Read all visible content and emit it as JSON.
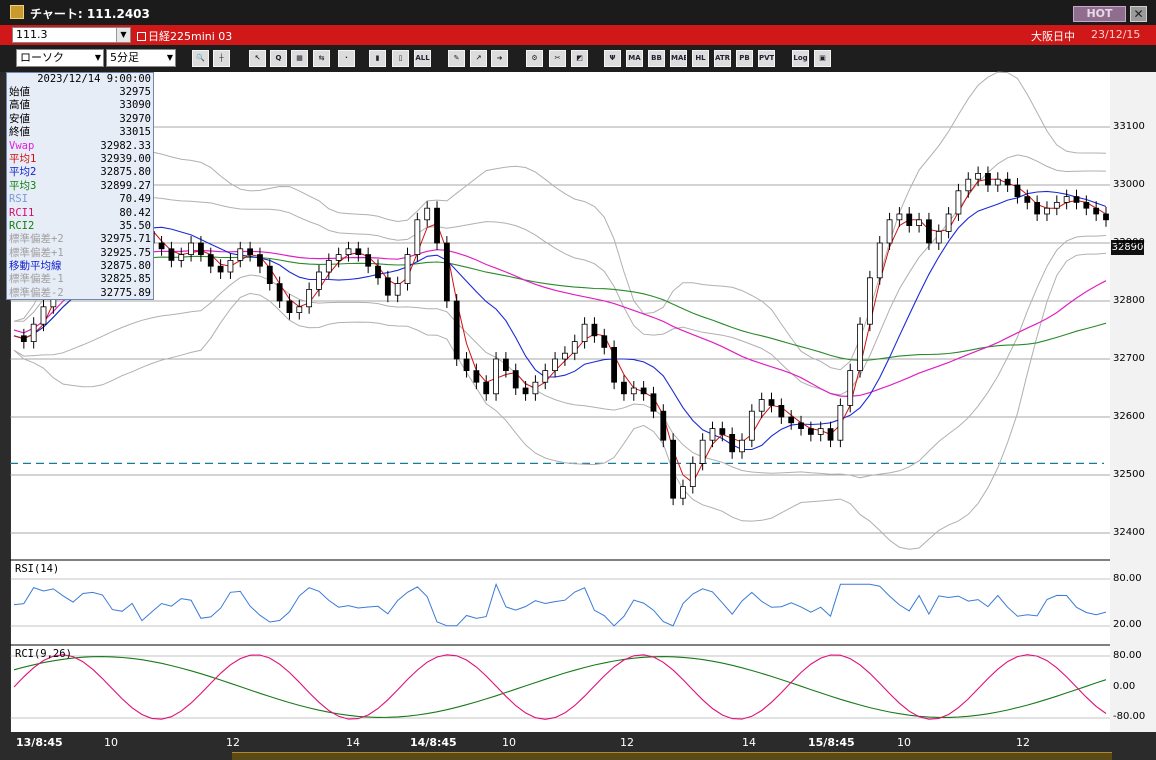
{
  "window": {
    "title": "チャート: 111.2403",
    "hot_label": "HOT",
    "close_label": "✕"
  },
  "header": {
    "code": "111.3",
    "instrument": "日経225mini 03",
    "market": "大阪日中",
    "date": "23/12/15"
  },
  "toolbar": {
    "chart_type": "ローソク",
    "interval": "5分足",
    "buttons": [
      {
        "name": "zoom-icon",
        "text": "🔍"
      },
      {
        "name": "crosshair-icon",
        "text": "┼"
      },
      {
        "name": "cursor-icon",
        "text": "↖"
      },
      {
        "name": "magnify-icon",
        "text": "Q"
      },
      {
        "name": "grid-icon",
        "text": "▦"
      },
      {
        "name": "compare-icon",
        "text": "⇆"
      },
      {
        "name": "disabled-icon",
        "text": "·"
      },
      {
        "name": "candle-a-icon",
        "text": "▮"
      },
      {
        "name": "candle-b-icon",
        "text": "▯"
      },
      {
        "name": "all-icon",
        "text": "ALL"
      },
      {
        "name": "pencil-icon",
        "text": "✎"
      },
      {
        "name": "pointer-icon",
        "text": "↗"
      },
      {
        "name": "arrow-icon",
        "text": "➜"
      },
      {
        "name": "gear-icon",
        "text": "⚙"
      },
      {
        "name": "tool-icon",
        "text": "✂"
      },
      {
        "name": "color-icon",
        "text": "◩"
      },
      {
        "name": "indicator-icon",
        "text": "Ψ"
      },
      {
        "name": "ma-icon",
        "text": "MA"
      },
      {
        "name": "bb-icon",
        "text": "BB"
      },
      {
        "name": "mae-icon",
        "text": "MAE"
      },
      {
        "name": "hl-icon",
        "text": "HL"
      },
      {
        "name": "atr-icon",
        "text": "ATR"
      },
      {
        "name": "pb-icon",
        "text": "PB"
      },
      {
        "name": "pvt-icon",
        "text": "PVT"
      },
      {
        "name": "log-icon",
        "text": "Log"
      },
      {
        "name": "save-icon",
        "text": "▣"
      }
    ]
  },
  "info": {
    "datetime": "2023/12/14 9:00:00",
    "rows": [
      {
        "label": "始値",
        "value": "32975",
        "color": "#000000"
      },
      {
        "label": "高値",
        "value": "33090",
        "color": "#000000"
      },
      {
        "label": "安値",
        "value": "32970",
        "color": "#000000"
      },
      {
        "label": "終値",
        "value": "33015",
        "color": "#000000"
      },
      {
        "label": "Vwap",
        "value": "32982.33",
        "color": "#e020e0"
      },
      {
        "label": "平均1",
        "value": "32939.00",
        "color": "#d01010"
      },
      {
        "label": "平均2",
        "value": "32875.80",
        "color": "#1020d0"
      },
      {
        "label": "平均3",
        "value": "32899.27",
        "color": "#108010"
      },
      {
        "label": "RSI",
        "value": "70.49",
        "color": "#7a9ad8"
      },
      {
        "label": "RCI1",
        "value": "80.42",
        "color": "#d01070"
      },
      {
        "label": "RCI2",
        "value": "35.50",
        "color": "#108010"
      },
      {
        "label": "標準偏差+2",
        "value": "32975.71",
        "color": "#a0a0a0"
      },
      {
        "label": "標準偏差+1",
        "value": "32925.75",
        "color": "#a0a0a0"
      },
      {
        "label": "移動平均線",
        "value": "32875.80",
        "color": "#1020d0"
      },
      {
        "label": "標準偏差-1",
        "value": "32825.85",
        "color": "#a0a0a0"
      },
      {
        "label": "標準偏差-2",
        "value": "32775.89",
        "color": "#a0a0a0"
      }
    ]
  },
  "chart_data": [
    {
      "type": "candlestick",
      "panel": "price",
      "y_ticks": [
        "33100",
        "33000",
        "32900",
        "32800",
        "32700",
        "32600",
        "32500",
        "32400"
      ],
      "ylim": [
        32370,
        33180
      ],
      "current_price_label": "32890",
      "dashed_level": 32520,
      "x_labels": [
        "13/8:45",
        "10",
        "12",
        "14",
        "14/8:45",
        "10",
        "12",
        "14",
        "15/8:45",
        "10",
        "12"
      ],
      "close_path": [
        32740,
        32730,
        32760,
        32790,
        32840,
        32880,
        32900,
        32930,
        32950,
        32960,
        32940,
        32930,
        32950,
        32920,
        32900,
        32890,
        32870,
        32880,
        32900,
        32880,
        32860,
        32850,
        32870,
        32890,
        32880,
        32860,
        32830,
        32800,
        32780,
        32790,
        32820,
        32850,
        32870,
        32880,
        32890,
        32880,
        32860,
        32840,
        32810,
        32830,
        32880,
        32940,
        32960,
        32900,
        32800,
        32700,
        32680,
        32660,
        32640,
        32700,
        32680,
        32650,
        32640,
        32660,
        32680,
        32700,
        32710,
        32730,
        32760,
        32740,
        32720,
        32660,
        32640,
        32650,
        32640,
        32610,
        32560,
        32460,
        32480,
        32520,
        32560,
        32580,
        32570,
        32540,
        32560,
        32610,
        32630,
        32620,
        32600,
        32590,
        32580,
        32570,
        32580,
        32560,
        32620,
        32680,
        32760,
        32840,
        32900,
        32940,
        32950,
        32930,
        32940,
        32900,
        32920,
        32950,
        32990,
        33010,
        33020,
        33000,
        33010,
        33000,
        32980,
        32970,
        32950,
        32960,
        32970,
        32980,
        32970,
        32960,
        32950,
        32940
      ]
    },
    {
      "type": "line",
      "panel": "RSI",
      "title": "RSI(14)",
      "y_ticks": [
        "80.00",
        "20.00"
      ],
      "ylim": [
        0,
        100
      ]
    },
    {
      "type": "line",
      "panel": "RCI",
      "title": "RCI(9,26)",
      "y_ticks": [
        "80.00",
        "0.00",
        "-80.00"
      ],
      "ylim": [
        -100,
        100
      ]
    }
  ]
}
